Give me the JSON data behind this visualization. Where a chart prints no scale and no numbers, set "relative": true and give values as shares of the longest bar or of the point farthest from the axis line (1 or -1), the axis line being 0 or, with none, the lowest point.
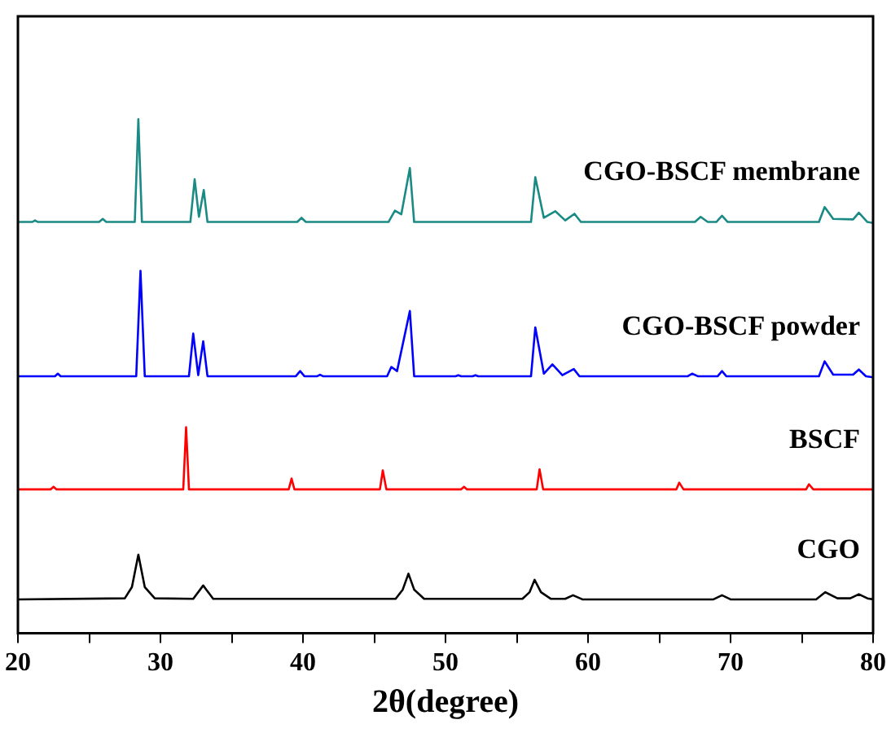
{
  "chart_data": {
    "type": "line",
    "xlabel": "2θ(degree)",
    "relative": true,
    "legend": false,
    "grid": false,
    "marker": "none",
    "tick_labels": "x",
    "xlim": [
      20,
      80
    ],
    "xticks": [
      20,
      {
        "value": 25,
        "label": null
      },
      30,
      {
        "value": 35,
        "label": null
      },
      40,
      {
        "value": 45,
        "label": null
      },
      50,
      {
        "value": 55,
        "label": null
      },
      60,
      {
        "value": 65,
        "label": null
      },
      70,
      {
        "value": 75,
        "label": null
      },
      80
    ],
    "series": [
      {
        "name": "CGO-BSCF membrane",
        "color": "#1a8a84",
        "x": [
          20,
          21,
          21.2,
          21.4,
          25.7,
          25.95,
          26.2,
          28.2,
          28.45,
          28.7,
          32.1,
          32.4,
          32.7,
          33.04,
          33.3,
          39.6,
          39.9,
          40.2,
          46.0,
          46.45,
          46.9,
          47.5,
          47.8,
          56.0,
          56.3,
          56.9,
          57.7,
          58.4,
          59.05,
          59.5,
          67.5,
          67.9,
          68.4,
          69.0,
          69.4,
          69.8,
          76.2,
          76.6,
          77.2,
          78.6,
          79.0,
          79.6,
          80
        ],
        "values": [
          0.8,
          0.8,
          0.803,
          0.8,
          0.8,
          0.806,
          0.8,
          0.8,
          1.0,
          0.8,
          0.8,
          0.883,
          0.81,
          0.862,
          0.8,
          0.8,
          0.808,
          0.8,
          0.8,
          0.822,
          0.815,
          0.905,
          0.8,
          0.8,
          0.887,
          0.808,
          0.821,
          0.803,
          0.816,
          0.8,
          0.8,
          0.81,
          0.8,
          0.8,
          0.812,
          0.8,
          0.8,
          0.829,
          0.806,
          0.805,
          0.818,
          0.8,
          0.798
        ]
      },
      {
        "name": "CGO-BSCF powder",
        "color": "#0000ff",
        "x": [
          20,
          22.6,
          22.8,
          23.0,
          28.3,
          28.6,
          28.9,
          32.0,
          32.3,
          32.65,
          33.0,
          33.3,
          39.5,
          39.8,
          40.1,
          41.0,
          41.2,
          41.4,
          45.9,
          46.2,
          46.6,
          47.5,
          47.8,
          50.7,
          50.9,
          51.1,
          51.9,
          52.1,
          52.3,
          56.0,
          56.3,
          56.9,
          57.5,
          58.2,
          59.0,
          59.4,
          67.0,
          67.3,
          67.7,
          69.1,
          69.4,
          69.7,
          76.2,
          76.6,
          77.2,
          78.6,
          79.0,
          79.5,
          80
        ],
        "values": [
          0.5,
          0.5,
          0.505,
          0.5,
          0.5,
          0.705,
          0.5,
          0.5,
          0.583,
          0.502,
          0.568,
          0.5,
          0.5,
          0.51,
          0.5,
          0.5,
          0.503,
          0.5,
          0.5,
          0.518,
          0.51,
          0.627,
          0.5,
          0.5,
          0.502,
          0.5,
          0.5,
          0.502,
          0.5,
          0.5,
          0.595,
          0.505,
          0.523,
          0.502,
          0.514,
          0.5,
          0.5,
          0.505,
          0.5,
          0.5,
          0.51,
          0.5,
          0.5,
          0.529,
          0.503,
          0.503,
          0.513,
          0.5,
          0.498
        ]
      },
      {
        "name": "BSCF",
        "color": "#ff0000",
        "x": [
          20,
          22.3,
          22.5,
          22.7,
          31.6,
          31.8,
          32.0,
          39.0,
          39.2,
          39.4,
          45.4,
          45.6,
          45.85,
          51.1,
          51.3,
          51.5,
          56.4,
          56.6,
          56.85,
          66.2,
          66.4,
          66.7,
          75.3,
          75.5,
          75.8,
          80
        ],
        "values": [
          0.28,
          0.28,
          0.285,
          0.28,
          0.28,
          0.401,
          0.28,
          0.28,
          0.301,
          0.28,
          0.28,
          0.317,
          0.28,
          0.28,
          0.285,
          0.28,
          0.28,
          0.319,
          0.28,
          0.28,
          0.293,
          0.28,
          0.28,
          0.29,
          0.28,
          0.28
        ]
      },
      {
        "name": "CGO",
        "color": "#000000",
        "x": [
          20,
          27.5,
          28.0,
          28.45,
          28.9,
          29.6,
          32.3,
          33.0,
          33.7,
          46.5,
          47.0,
          47.4,
          47.8,
          48.5,
          55.4,
          55.9,
          56.25,
          56.7,
          57.4,
          58.4,
          58.95,
          59.6,
          68.8,
          69.4,
          70.0,
          76.0,
          76.65,
          77.5,
          78.4,
          79.0,
          79.6,
          80
        ],
        "values": [
          0.066,
          0.068,
          0.09,
          0.153,
          0.09,
          0.068,
          0.067,
          0.093,
          0.067,
          0.067,
          0.085,
          0.116,
          0.085,
          0.067,
          0.067,
          0.08,
          0.104,
          0.08,
          0.067,
          0.067,
          0.074,
          0.066,
          0.066,
          0.074,
          0.066,
          0.066,
          0.08,
          0.068,
          0.068,
          0.076,
          0.068,
          0.066
        ]
      }
    ]
  }
}
